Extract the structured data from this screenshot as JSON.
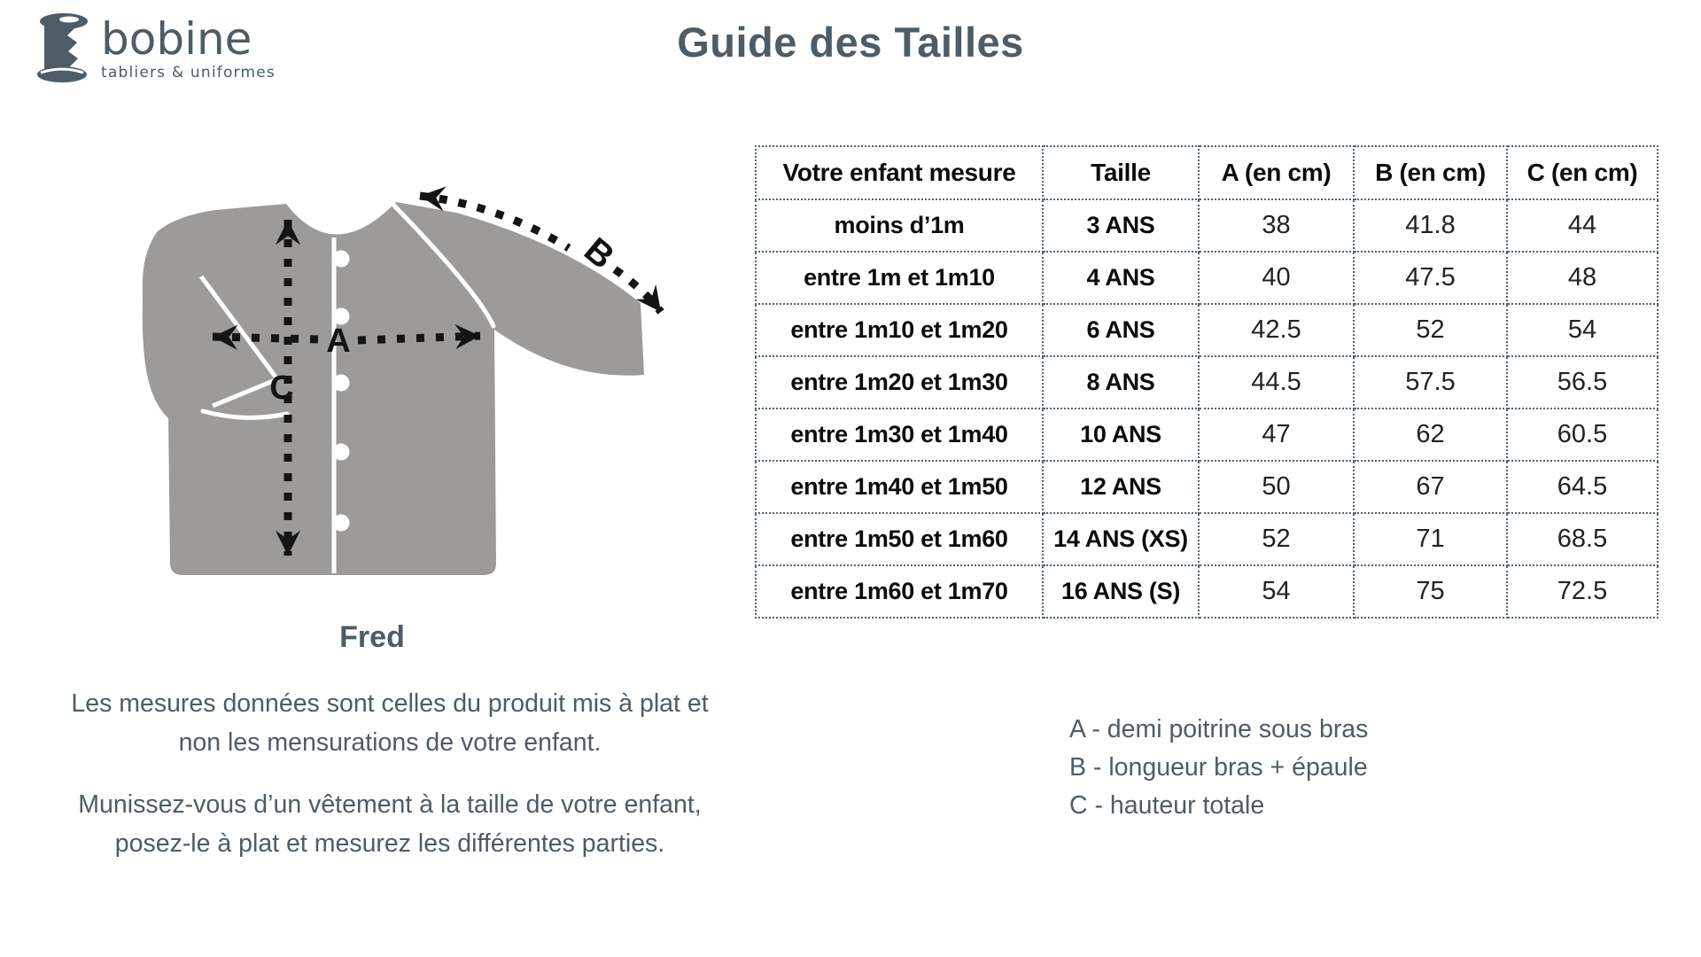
{
  "brand": {
    "name": "bobine",
    "tagline": "tabliers & uniformes"
  },
  "page_title": "Guide des Tailles",
  "product": {
    "name": "Fred"
  },
  "measure_labels": {
    "a": "A",
    "b": "B",
    "c": "C"
  },
  "size_table": {
    "headers": [
      "Votre enfant mesure",
      "Taille",
      "A (en cm)",
      "B (en cm)",
      "C (en cm)"
    ],
    "rows": [
      [
        "moins d’1m",
        "3 ANS",
        "38",
        "41.8",
        "44"
      ],
      [
        "entre 1m et 1m10",
        "4 ANS",
        "40",
        "47.5",
        "48"
      ],
      [
        "entre 1m10 et 1m20",
        "6 ANS",
        "42.5",
        "52",
        "54"
      ],
      [
        "entre 1m20 et 1m30",
        "8 ANS",
        "44.5",
        "57.5",
        "56.5"
      ],
      [
        "entre 1m30 et 1m40",
        "10 ANS",
        "47",
        "62",
        "60.5"
      ],
      [
        "entre 1m40 et 1m50",
        "12 ANS",
        "50",
        "67",
        "64.5"
      ],
      [
        "entre 1m50 et 1m60",
        "14 ANS (XS)",
        "52",
        "71",
        "68.5"
      ],
      [
        "entre 1m60 et 1m70",
        "16 ANS (S)",
        "54",
        "75",
        "72.5"
      ]
    ]
  },
  "notes": {
    "paragraph1": [
      "Les mesures données sont celles du produit mis à plat et",
      "non les mensurations de votre enfant."
    ],
    "paragraph2": [
      "Munissez-vous d’un vêtement à la taille de votre enfant,",
      "posez-le à plat et mesurez les différentes parties."
    ]
  },
  "legend": [
    "A - demi poitrine sous bras",
    "B - longueur bras + épaule",
    "C - hauteur totale"
  ],
  "colors": {
    "brand_slate": "#4d5c66",
    "garment_gray": "#9c9b99",
    "table_border": "#54646e",
    "text_black": "#141414"
  }
}
